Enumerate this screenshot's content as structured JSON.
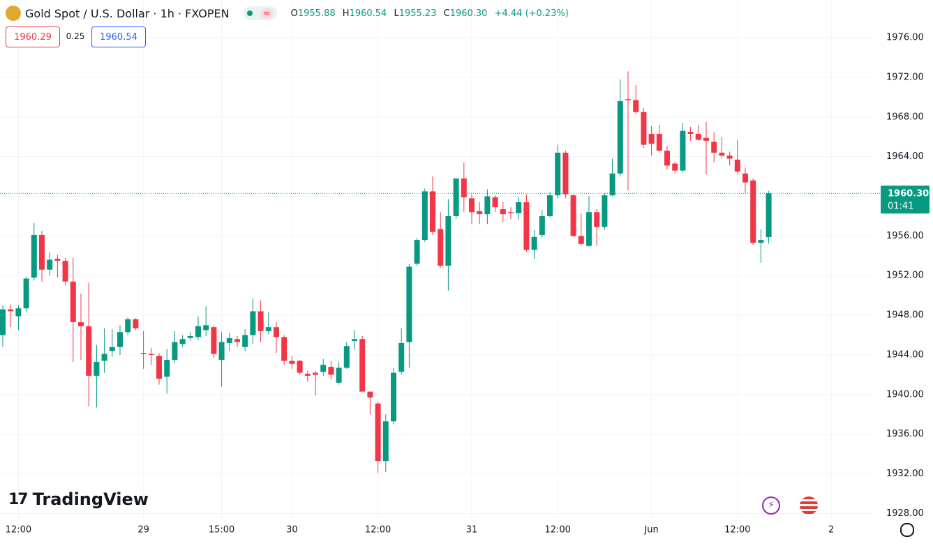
{
  "header": {
    "symbol": "Gold Spot / U.S. Dollar · 1h · FXOPEN",
    "open_label": "O",
    "open": "1955.88",
    "high_label": "H",
    "high": "1960.54",
    "low_label": "L",
    "low": "1955.23",
    "close_label": "C",
    "close": "1960.30",
    "change": "+4.44 (+0.23%)"
  },
  "quote": {
    "bid": "1960.29",
    "spread": "0.25",
    "ask": "1960.54"
  },
  "brand": "TradingView",
  "chart_data": {
    "type": "candlestick",
    "up_color": "#089981",
    "down_color": "#f23645",
    "grid": true,
    "open": [
      1946,
      1948.6,
      1947.9,
      1948.7,
      1951.8,
      1956.1,
      1952.6,
      1953.7,
      1953.5,
      1951.4,
      1947.3,
      1946.9,
      1941.9,
      1943.4,
      1944.4,
      1944.8,
      1946.3,
      1947.6,
      1944.2,
      1944.1,
      1943.9,
      1941.8,
      1943.5,
      1945.1,
      1945.7,
      1945.8,
      1946.5,
      1946.8,
      1943.5,
      1945.2,
      1945.6,
      1944.8,
      1946,
      1948.4,
      1946.4,
      1946.8,
      1945.8,
      1943.4,
      1943.4,
      1942.1,
      1942.2,
      1942.3,
      1942.8,
      1941.2,
      1942.7,
      1945.4,
      1945.6,
      1940.3,
      1939.1,
      1933.3,
      1937.3,
      1942.3,
      1945.3,
      1953.2,
      1955.6,
      1960.5,
      1956.7,
      1953,
      1958,
      1961.8,
      1959.8,
      1958.5,
      1958.2,
      1959.9,
      1958.7,
      1958.4,
      1958.3,
      1959.4,
      1954.6,
      1956.1,
      1958,
      1960.1,
      1964.4,
      1960.1,
      1956,
      1955,
      1958.4,
      1956.9,
      1960.1,
      1962.3,
      1969.8,
      1969.7,
      1968.5,
      1966.3,
      1966.3,
      1964.6,
      1963.3,
      1962.6,
      1966.5,
      1966.3,
      1965.9,
      1965.5,
      1964.4,
      1964.1,
      1963.7,
      1962.3,
      1961.6,
      1955.3,
      1955.88
    ],
    "high": [
      1949,
      1949.1,
      1949,
      1951.9,
      1957.3,
      1956.5,
      1954.4,
      1954.1,
      1953.8,
      1953.8,
      1950.2,
      1951.3,
      1945,
      1946.7,
      1946.6,
      1947,
      1947.8,
      1947.7,
      1946.4,
      1944.7,
      1944.2,
      1944.6,
      1946.4,
      1946,
      1946.3,
      1947.9,
      1948.9,
      1947,
      1946.3,
      1946.2,
      1945.9,
      1946.6,
      1949.7,
      1949.5,
      1948.3,
      1947.3,
      1946,
      1943.9,
      1943.5,
      1942.4,
      1942.4,
      1943.6,
      1943.4,
      1943.3,
      1945.3,
      1946.5,
      1945.9,
      1940.3,
      1939.3,
      1938,
      1942.7,
      1946.7,
      1953.2,
      1955.8,
      1960.8,
      1962,
      1958.4,
      1959.7,
      1961.8,
      1963.4,
      1960.2,
      1959.4,
      1960.7,
      1960.1,
      1959.4,
      1958.9,
      1959.9,
      1960.2,
      1956.6,
      1958.6,
      1960.4,
      1965.2,
      1964.6,
      1960.2,
      1958.3,
      1960,
      1958.7,
      1960.3,
      1963.8,
      1971.8,
      1972.6,
      1971.2,
      1968.9,
      1967.1,
      1967.2,
      1965.1,
      1963.5,
      1967.4,
      1967,
      1967.2,
      1967.5,
      1966.5,
      1966,
      1964.5,
      1965.7,
      1962.9,
      1961.8,
      1956.7,
      1960.54
    ],
    "low": [
      1944.8,
      1946.8,
      1946.5,
      1948.3,
      1951.5,
      1951.4,
      1952,
      1951.8,
      1951,
      1943.3,
      1943.5,
      1938.8,
      1938.7,
      1942.2,
      1943.8,
      1944,
      1946,
      1946.5,
      1942.6,
      1943,
      1941,
      1940.1,
      1943.2,
      1944.8,
      1945.4,
      1945.5,
      1945.9,
      1943.7,
      1940.8,
      1944.4,
      1944.8,
      1944.4,
      1945.1,
      1945.3,
      1946.1,
      1944.2,
      1943,
      1942.6,
      1942,
      1941.3,
      1939.9,
      1941.9,
      1941.5,
      1941,
      1942.6,
      1944.5,
      1940.3,
      1938,
      1932.1,
      1932.2,
      1937,
      1942,
      1942.7,
      1953,
      1955.4,
      1956.1,
      1952.8,
      1950.5,
      1957.7,
      1958.4,
      1957.2,
      1957.2,
      1957.2,
      1958.4,
      1957.4,
      1957.7,
      1957.6,
      1954.4,
      1953.7,
      1955.8,
      1957.9,
      1959.8,
      1959.8,
      1955.9,
      1955,
      1954.9,
      1955,
      1956.6,
      1960,
      1962,
      1960.6,
      1968.3,
      1964.9,
      1964.1,
      1964.5,
      1962.7,
      1962.3,
      1962.4,
      1965.6,
      1965.6,
      1962.2,
      1963.4,
      1963.8,
      1963.1,
      1962.2,
      1960.3,
      1955.1,
      1953.3,
      1955.23
    ],
    "close": [
      1948.6,
      1948.4,
      1948.7,
      1951.7,
      1956.1,
      1952.6,
      1953.6,
      1953.5,
      1951.4,
      1947.3,
      1946.9,
      1941.9,
      1943.3,
      1944.1,
      1944.8,
      1946.3,
      1947.6,
      1946.7,
      1944.1,
      1944,
      1941.6,
      1943.5,
      1945.3,
      1945.6,
      1945.9,
      1946.9,
      1947,
      1944.1,
      1945.3,
      1945.7,
      1945.3,
      1946,
      1948.4,
      1946.4,
      1946.8,
      1945.8,
      1943.4,
      1943.1,
      1942.2,
      1941.9,
      1942,
      1943,
      1942,
      1942.7,
      1944.9,
      1945.6,
      1940.3,
      1939.7,
      1933.3,
      1937.3,
      1942.2,
      1945.2,
      1952.9,
      1955.6,
      1960.5,
      1956.4,
      1953,
      1958,
      1961.8,
      1959.9,
      1958.4,
      1958.2,
      1960,
      1958.9,
      1958.2,
      1958.3,
      1959.4,
      1954.6,
      1955.9,
      1958,
      1960.1,
      1964.4,
      1960.2,
      1956,
      1955.2,
      1958.4,
      1956.9,
      1960.1,
      1962.3,
      1969.6,
      1969.7,
      1968.5,
      1965.2,
      1965.3,
      1964.6,
      1963.1,
      1962.6,
      1966.6,
      1966.3,
      1965.7,
      1965.6,
      1964.4,
      1964.1,
      1963.8,
      1962.5,
      1961.4,
      1955.3,
      1955.6,
      1960.3
    ],
    "xlim": [
      -0.357,
      111.25
    ],
    "xticks": [
      {
        "value": 2,
        "label": "12:00"
      },
      {
        "value": 18,
        "label": "29"
      },
      {
        "value": 28,
        "label": "15:00"
      },
      {
        "value": 37,
        "label": "30"
      },
      {
        "value": 48,
        "label": "12:00"
      },
      {
        "value": 60,
        "label": "31"
      },
      {
        "value": 71,
        "label": "12:00"
      },
      {
        "value": 83,
        "label": "Jun"
      },
      {
        "value": 94,
        "label": "12:00"
      },
      {
        "value": 106,
        "label": "2"
      }
    ],
    "ylim": [
      1927.4,
      1979.8
    ],
    "yticks": [
      {
        "value": 1928,
        "label": "1928.00"
      },
      {
        "value": 1932,
        "label": "1932.00"
      },
      {
        "value": 1936,
        "label": "1936.00"
      },
      {
        "value": 1940,
        "label": "1940.00"
      },
      {
        "value": 1944,
        "label": "1944.00"
      },
      {
        "value": 1948,
        "label": "1948.00"
      },
      {
        "value": 1952,
        "label": "1952.00"
      },
      {
        "value": 1956,
        "label": "1956.00"
      },
      {
        "value": 1960,
        "label": "1960.00"
      },
      {
        "value": 1964,
        "label": "1964.00"
      },
      {
        "value": 1968,
        "label": "1968.00"
      },
      {
        "value": 1972,
        "label": "1972.00"
      },
      {
        "value": 1976,
        "label": "1976.00"
      }
    ],
    "last_price": {
      "value": 1960.3,
      "label": "1960.30"
    },
    "countdown": "01:41"
  }
}
